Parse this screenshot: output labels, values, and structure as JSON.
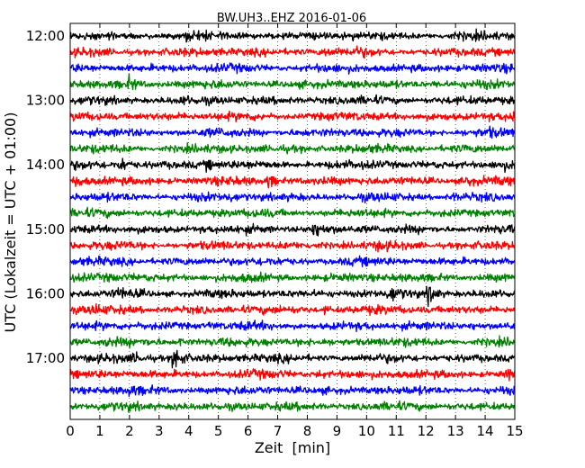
{
  "chart_data": {
    "type": "line",
    "title": "BW.UH3..EHZ 2016-01-06",
    "xlabel": "Zeit  [min]",
    "ylabel": "UTC (Lokalzeit = UTC + 01:00)",
    "xlim": [
      0,
      15
    ],
    "x_ticks": [
      "0",
      "1",
      "2",
      "3",
      "4",
      "5",
      "6",
      "7",
      "8",
      "9",
      "10",
      "11",
      "12",
      "13",
      "14",
      "15"
    ],
    "y_tick_labels": [
      "12:00",
      "13:00",
      "14:00",
      "15:00",
      "16:00",
      "17:00"
    ],
    "trace_interval_minutes": 15,
    "first_trace_start": "12:00",
    "trace_count": 24,
    "series_colors": [
      "#000000",
      "#ff0000",
      "#0000ff",
      "#008000"
    ],
    "grid": "vertical dotted at each minute",
    "legend": "none",
    "events": [
      {
        "trace_start": "12:00",
        "x": 3.9,
        "relative_amplitude": 1.8
      },
      {
        "trace_start": "12:15",
        "x": 8.6,
        "relative_amplitude": 1.6
      },
      {
        "trace_start": "12:15",
        "x": 9.7,
        "relative_amplitude": 1.5
      },
      {
        "trace_start": "12:45",
        "x": 2.0,
        "relative_amplitude": 2.2
      },
      {
        "trace_start": "12:45",
        "x": 12.3,
        "relative_amplitude": 1.6
      },
      {
        "trace_start": "13:00",
        "x": 3.8,
        "relative_amplitude": 1.5
      },
      {
        "trace_start": "13:15",
        "x": 14.9,
        "relative_amplitude": 1.8
      },
      {
        "trace_start": "13:30",
        "x": 14.1,
        "relative_amplitude": 1.4
      },
      {
        "trace_start": "14:00",
        "x": 1.7,
        "relative_amplitude": 2.6
      },
      {
        "trace_start": "14:00",
        "x": 4.6,
        "relative_amplitude": 1.8
      },
      {
        "trace_start": "14:00",
        "x": 14.5,
        "relative_amplitude": 1.8
      },
      {
        "trace_start": "14:15",
        "x": 0.1,
        "relative_amplitude": 2.2
      },
      {
        "trace_start": "14:15",
        "x": 6.7,
        "relative_amplitude": 2.4
      },
      {
        "trace_start": "14:15",
        "x": 13.3,
        "relative_amplitude": 2.2
      },
      {
        "trace_start": "14:30",
        "x": 5.3,
        "relative_amplitude": 1.6
      },
      {
        "trace_start": "14:30",
        "x": 12.9,
        "relative_amplitude": 1.4
      },
      {
        "trace_start": "15:00",
        "x": 8.2,
        "relative_amplitude": 3.2
      },
      {
        "trace_start": "15:15",
        "x": 10.4,
        "relative_amplitude": 1.5
      },
      {
        "trace_start": "15:45",
        "x": 1.3,
        "relative_amplitude": 1.5
      },
      {
        "trace_start": "16:00",
        "x": 1.6,
        "relative_amplitude": 2.0
      },
      {
        "trace_start": "16:00",
        "x": 10.8,
        "relative_amplitude": 2.4
      },
      {
        "trace_start": "16:00",
        "x": 12.1,
        "relative_amplitude": 3.8
      },
      {
        "trace_start": "16:15",
        "x": 0.8,
        "relative_amplitude": 1.6
      },
      {
        "trace_start": "16:15",
        "x": 8.6,
        "relative_amplitude": 1.6
      },
      {
        "trace_start": "16:30",
        "x": 4.7,
        "relative_amplitude": 1.5
      },
      {
        "trace_start": "16:30",
        "x": 13.5,
        "relative_amplitude": 1.7
      },
      {
        "trace_start": "16:45",
        "x": 1.2,
        "relative_amplitude": 1.5
      },
      {
        "trace_start": "16:45",
        "x": 3.7,
        "relative_amplitude": 1.8
      },
      {
        "trace_start": "17:00",
        "x": 3.5,
        "relative_amplitude": 4.5
      },
      {
        "trace_start": "17:00",
        "x": 2.2,
        "relative_amplitude": 1.8
      },
      {
        "trace_start": "17:15",
        "x": 8.3,
        "relative_amplitude": 1.8
      },
      {
        "trace_start": "17:15",
        "x": 14.8,
        "relative_amplitude": 2.0
      },
      {
        "trace_start": "17:30",
        "x": 2.0,
        "relative_amplitude": 1.6
      },
      {
        "trace_start": "17:45",
        "x": 3.5,
        "relative_amplitude": 1.6
      }
    ]
  }
}
